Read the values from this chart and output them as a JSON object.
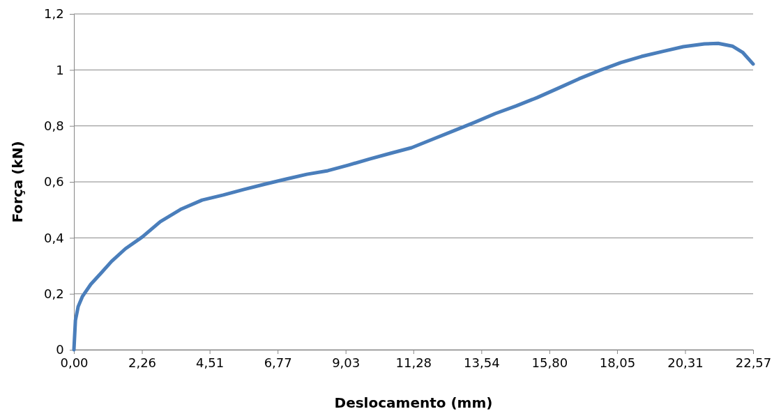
{
  "chart_data": {
    "type": "line",
    "xlabel": "Deslocamento (mm)",
    "ylabel": "Força (kN)",
    "x": [
      0,
      0.05,
      0.14,
      0.28,
      0.56,
      0.9,
      1.25,
      1.71,
      2.27,
      2.87,
      3.57,
      4.26,
      4.96,
      5.65,
      6.35,
      7.05,
      7.74,
      8.44,
      9.13,
      9.83,
      10.52,
      11.22,
      11.91,
      12.61,
      13.3,
      14,
      14.69,
      15.39,
      16.08,
      16.78,
      17.47,
      18.17,
      18.86,
      19.56,
      20.25,
      20.95,
      21.41,
      21.88,
      22.22,
      22.57
    ],
    "series": [
      {
        "color": "#4a7ebb",
        "values": [
          0,
          0.105,
          0.154,
          0.19,
          0.234,
          0.274,
          0.316,
          0.361,
          0.403,
          0.458,
          0.503,
          0.535,
          0.553,
          0.573,
          0.592,
          0.61,
          0.627,
          0.64,
          0.66,
          0.682,
          0.702,
          0.722,
          0.752,
          0.782,
          0.812,
          0.844,
          0.871,
          0.901,
          0.934,
          0.968,
          0.998,
          1.026,
          1.048,
          1.066,
          1.083,
          1.093,
          1.095,
          1.085,
          1.063,
          1.021
        ]
      }
    ],
    "xlim": [
      0,
      22.57
    ],
    "xticks": [
      {
        "value": 0,
        "label": "0,00"
      },
      {
        "value": 2.26,
        "label": "2,26"
      },
      {
        "value": 4.51,
        "label": "4,51"
      },
      {
        "value": 6.77,
        "label": "6,77"
      },
      {
        "value": 9.03,
        "label": "9,03"
      },
      {
        "value": 11.28,
        "label": "11,28"
      },
      {
        "value": 13.54,
        "label": "13,54"
      },
      {
        "value": 15.8,
        "label": "15,80"
      },
      {
        "value": 18.05,
        "label": "18,05"
      },
      {
        "value": 20.31,
        "label": "20,31"
      },
      {
        "value": 22.57,
        "label": "22,57"
      }
    ],
    "ylim": [
      0,
      1.2
    ],
    "yticks": [
      0,
      {
        "value": 0.2,
        "label": "0,2"
      },
      {
        "value": 0.4,
        "label": "0,4"
      },
      {
        "value": 0.6,
        "label": "0,6"
      },
      {
        "value": 0.8,
        "label": "0,8"
      },
      1,
      {
        "value": 1.2,
        "label": "1,2"
      }
    ],
    "grid": "y",
    "marker": "none",
    "line_style": "solid"
  }
}
